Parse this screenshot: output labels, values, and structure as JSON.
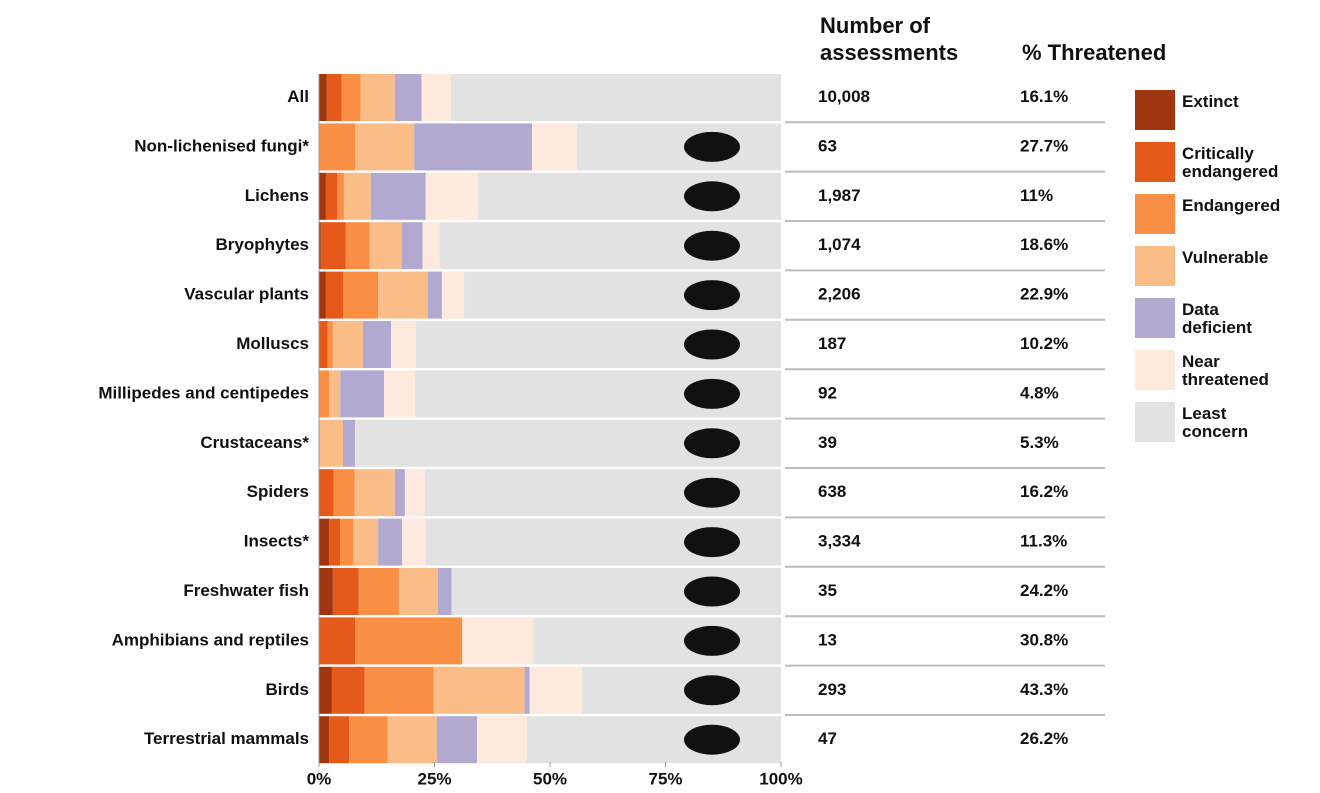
{
  "chart_data": {
    "type": "stacked-bar",
    "orientation": "horizontal",
    "categories": [
      "All",
      "Non-lichenised fungi*",
      "Lichens",
      "Bryophytes",
      "Vascular plants",
      "Molluscs",
      "Millipedes and centipedes",
      "Crustaceans*",
      "Spiders",
      "Insects*",
      "Freshwater fish",
      "Amphibians and reptiles",
      "Birds",
      "Terrestrial mammals"
    ],
    "series": [
      {
        "name": "Extinct",
        "color": "#a0360e",
        "values": [
          1.7,
          0,
          1.5,
          0.4,
          1.5,
          0,
          0,
          0,
          0,
          2.2,
          3.0,
          0,
          2.8,
          2.2
        ]
      },
      {
        "name": "Critically endangered",
        "color": "#e55a1a",
        "values": [
          3.2,
          0,
          2.4,
          5.4,
          3.7,
          1.9,
          0,
          0,
          3.2,
          2.4,
          5.6,
          7.8,
          7.1,
          4.3
        ]
      },
      {
        "name": "Endangered",
        "color": "#f98f45",
        "values": [
          4.1,
          7.8,
          1.5,
          5.2,
          7.6,
          1.1,
          2.2,
          0,
          4.5,
          2.8,
          8.7,
          23.2,
          14.9,
          8.4
        ]
      },
      {
        "name": "Vulnerable",
        "color": "#fbbd88",
        "values": [
          7.4,
          12.8,
          5.8,
          6.9,
          10.8,
          6.5,
          2.4,
          5.2,
          8.7,
          5.4,
          8.4,
          0,
          19.7,
          10.6
        ]
      },
      {
        "name": "Data deficient",
        "color": "#b1a9d0",
        "values": [
          5.8,
          25.5,
          11.9,
          4.5,
          3.0,
          6.1,
          9.5,
          2.6,
          2.2,
          5.2,
          3.0,
          0,
          1.1,
          8.7
        ]
      },
      {
        "name": "Near threatened",
        "color": "#fde9dd",
        "values": [
          6.3,
          9.7,
          11.3,
          3.7,
          4.8,
          5.4,
          6.7,
          0,
          4.3,
          5.0,
          0,
          15.4,
          11.3,
          10.8
        ]
      },
      {
        "name": "Least concern",
        "color": "#e2e2e2",
        "values": [
          71.5,
          44.2,
          65.6,
          73.9,
          68.6,
          79,
          79.2,
          92.2,
          77.1,
          77,
          71.3,
          53.6,
          43.1,
          55
        ]
      }
    ],
    "xlim": [
      0,
      100
    ],
    "xticks": [
      {
        "value": 0,
        "label": "0%"
      },
      {
        "value": 25,
        "label": "25%"
      },
      {
        "value": 50,
        "label": "50%"
      },
      {
        "value": 75,
        "label": "75%"
      },
      {
        "value": 100,
        "label": "100%"
      }
    ],
    "columns": [
      {
        "header": [
          "Number of",
          "assessments"
        ],
        "values": [
          "10,008",
          "63",
          "1,987",
          "1,074",
          "2,206",
          "187",
          "92",
          "39",
          "638",
          "3,334",
          "35",
          "13",
          "293",
          "47"
        ]
      },
      {
        "header": [
          "% Threatened"
        ],
        "values": [
          "16.1%",
          "27.7%",
          "11%",
          "18.6%",
          "22.9%",
          "10.2%",
          "4.8%",
          "5.3%",
          "16.2%",
          "11.3%",
          "24.2%",
          "30.8%",
          "43.3%",
          "26.2%"
        ]
      }
    ],
    "legend": "right"
  }
}
